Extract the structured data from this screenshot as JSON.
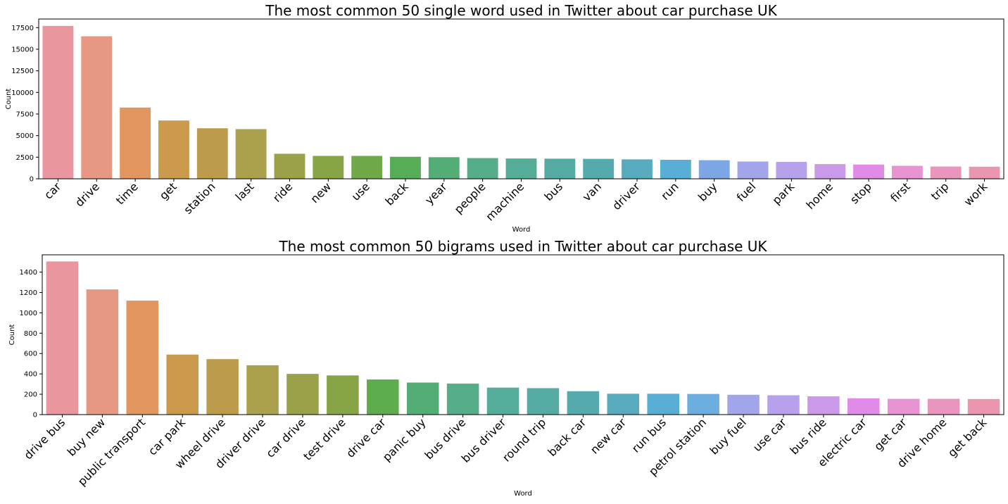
{
  "chart_data": [
    {
      "type": "bar",
      "title": "The most common 50 single word used in Twitter about car purchase UK",
      "xlabel": "Word",
      "ylabel": "Count",
      "ylim": [
        0,
        18500
      ],
      "yticks": [
        0,
        2500,
        5000,
        7500,
        10000,
        12500,
        15000,
        17500
      ],
      "categories": [
        "car",
        "drive",
        "time",
        "get",
        "station",
        "last",
        "ride",
        "new",
        "use",
        "back",
        "year",
        "people",
        "machine",
        "bus",
        "van",
        "driver",
        "run",
        "buy",
        "fuel",
        "park",
        "home",
        "stop",
        "first",
        "trip",
        "work"
      ],
      "values": [
        17700,
        16500,
        8250,
        6750,
        5850,
        5750,
        2900,
        2650,
        2650,
        2550,
        2500,
        2400,
        2350,
        2330,
        2310,
        2250,
        2200,
        2150,
        2000,
        1950,
        1700,
        1650,
        1500,
        1420,
        1400
      ],
      "colors": [
        "#e9969f",
        "#e79882",
        "#e19660",
        "#cc9a4d",
        "#bc9c4c",
        "#aba04c",
        "#9aa148",
        "#87a446",
        "#70a948",
        "#56ad56",
        "#55ad76",
        "#55ad8a",
        "#55ac98",
        "#55aba4",
        "#56aaae",
        "#57abbc",
        "#58aed5",
        "#7da7e4",
        "#a2a5ea",
        "#b6a1ea",
        "#ca9ae9",
        "#e08be8",
        "#e894d3",
        "#e995bd",
        "#e996ae"
      ]
    },
    {
      "type": "bar",
      "title": "The most common 50 bigrams used in Twitter about car purchase UK",
      "xlabel": "Word",
      "ylabel": "Count",
      "ylim": [
        0,
        1570
      ],
      "yticks": [
        0,
        200,
        400,
        600,
        800,
        1000,
        1200,
        1400
      ],
      "categories": [
        "drive bus",
        "buy new",
        "public transport",
        "car park",
        "wheel drive",
        "driver drive",
        "car drive",
        "test drive",
        "drive car",
        "panic buy",
        "bus drive",
        "bus driver",
        "round trip",
        "back car",
        "new car",
        "run bus",
        "petrol station",
        "buy fuel",
        "use car",
        "bus ride",
        "electric car",
        "get car",
        "drive home",
        "get back"
      ],
      "values": [
        1505,
        1230,
        1120,
        590,
        545,
        485,
        400,
        385,
        345,
        315,
        305,
        265,
        260,
        230,
        205,
        205,
        203,
        195,
        190,
        180,
        160,
        155,
        155,
        153
      ],
      "colors": [
        "#e9969f",
        "#e79882",
        "#e19660",
        "#cc9a4d",
        "#bc9c4c",
        "#aba04c",
        "#9aa148",
        "#87a446",
        "#5fac4c",
        "#55ad76",
        "#55ad8a",
        "#55ac98",
        "#55aba4",
        "#56aaae",
        "#57abbc",
        "#58aed5",
        "#6daee0",
        "#a2a5ea",
        "#b6a1ea",
        "#ca9ae9",
        "#e08be8",
        "#e894d3",
        "#e995bd",
        "#e996ae"
      ]
    }
  ]
}
